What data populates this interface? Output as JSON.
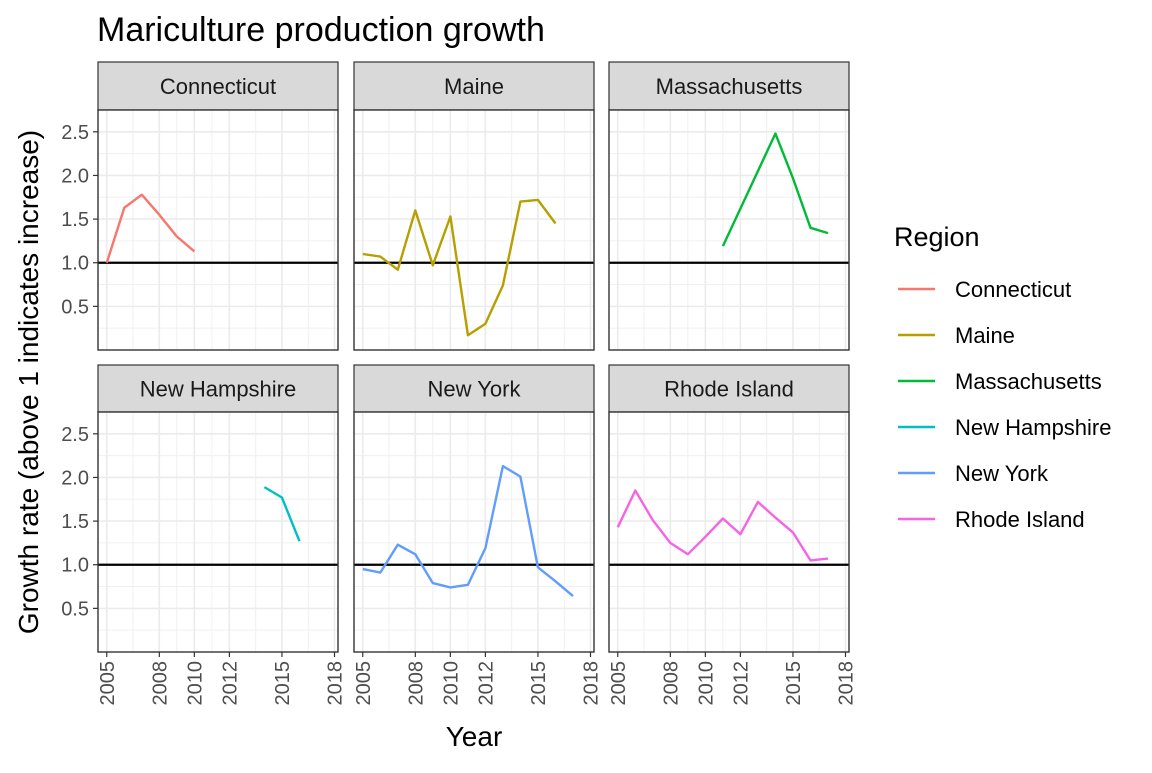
{
  "chart_data": {
    "type": "line",
    "title": "Mariculture production growth",
    "xlabel": "Year",
    "ylabel": "Growth rate (above 1 indicates increase)",
    "xlim": [
      2004.5,
      2018.2
    ],
    "ylim": [
      0.0,
      2.75
    ],
    "x_ticks": [
      2005,
      2008,
      2010,
      2012,
      2015,
      2018
    ],
    "x_tick_labels": [
      "2005",
      "2008",
      "2010",
      "2012",
      "2015",
      "2018"
    ],
    "y_ticks": [
      0.5,
      1.0,
      1.5,
      2.0,
      2.5
    ],
    "y_tick_labels": [
      "0.5",
      "1.0",
      "1.5",
      "2.0",
      "2.5"
    ],
    "reference_line": 1.0,
    "grid": true,
    "facet_layout": {
      "rows": 2,
      "cols": 3
    },
    "legend": {
      "title": "Region",
      "position": "right"
    },
    "series": [
      {
        "name": "Connecticut",
        "color": "#F8766D",
        "x": [
          2005.0,
          2006.0,
          2007.0,
          2008.0,
          2009.0,
          2010.0
        ],
        "y": [
          1.0,
          1.63,
          1.78,
          1.55,
          1.3,
          1.13
        ]
      },
      {
        "name": "Maine",
        "color": "#B79F00",
        "x": [
          2005,
          2006,
          2007,
          2008,
          2009,
          2010,
          2011,
          2012,
          2013,
          2014,
          2015,
          2016
        ],
        "y": [
          1.1,
          1.07,
          0.92,
          1.6,
          0.97,
          1.53,
          0.17,
          0.3,
          0.74,
          1.7,
          1.72,
          1.45
        ]
      },
      {
        "name": "Massachusetts",
        "color": "#00BA38",
        "x": [
          2011,
          2012,
          2013,
          2014,
          2015,
          2016,
          2017
        ],
        "y": [
          1.19,
          1.62,
          2.05,
          2.48,
          1.97,
          1.4,
          1.34
        ]
      },
      {
        "name": "New Hampshire",
        "color": "#00BFC4",
        "x": [
          2014,
          2015,
          2016
        ],
        "y": [
          1.89,
          1.77,
          1.27
        ]
      },
      {
        "name": "New York",
        "color": "#619CFF",
        "x": [
          2005,
          2006,
          2007,
          2008,
          2009,
          2010,
          2011,
          2012,
          2013,
          2014,
          2015,
          2016,
          2017
        ],
        "y": [
          0.95,
          0.91,
          1.23,
          1.12,
          0.79,
          0.74,
          0.77,
          1.19,
          2.13,
          2.01,
          0.97,
          0.81,
          0.64
        ]
      },
      {
        "name": "Rhode Island",
        "color": "#F564E3",
        "x": [
          2005,
          2006,
          2007,
          2008,
          2009,
          2010,
          2011,
          2012,
          2013,
          2014,
          2015,
          2016,
          2017
        ],
        "y": [
          1.43,
          1.85,
          1.51,
          1.25,
          1.12,
          1.32,
          1.53,
          1.35,
          1.72,
          1.54,
          1.37,
          1.05,
          1.07
        ]
      }
    ]
  }
}
